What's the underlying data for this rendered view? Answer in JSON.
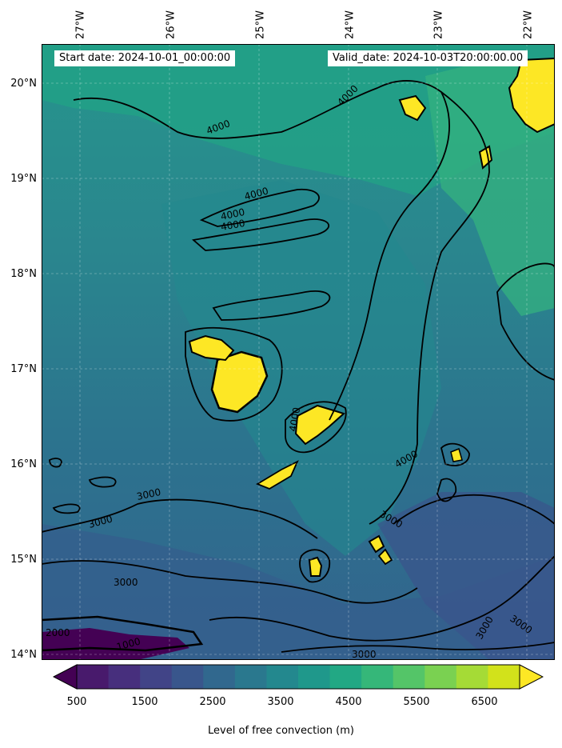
{
  "map": {
    "title_start": "Start date: 2024-10-01_00:00:00",
    "title_valid": "Valid_date: 2024-10-03T20:00:00.00",
    "lon_labels": [
      "27°W",
      "26°W",
      "25°W",
      "24°W",
      "23°W",
      "22°W"
    ],
    "lat_labels": [
      "20°N",
      "19°N",
      "18°N",
      "17°N",
      "16°N",
      "15°N",
      "14°N"
    ],
    "contour_labels": [
      "4000",
      "4000",
      "4000",
      "4000",
      "4000",
      "4000",
      "4000",
      "3000",
      "3000",
      "3000",
      "3000",
      "3000",
      "3000",
      "2000",
      "1000",
      "3000"
    ]
  },
  "colorbar": {
    "label": "Level of free convection (m)",
    "tick_labels": [
      "500",
      "1500",
      "2500",
      "3500",
      "4500",
      "5500",
      "6500"
    ],
    "colors": [
      "#440154",
      "#481a6c",
      "#472f7d",
      "#414487",
      "#39568c",
      "#31688e",
      "#2a788e",
      "#23888e",
      "#1f988b",
      "#22a884",
      "#35b779",
      "#54c568",
      "#7ad151",
      "#a5db36",
      "#d2e21b",
      "#fde725"
    ]
  }
}
